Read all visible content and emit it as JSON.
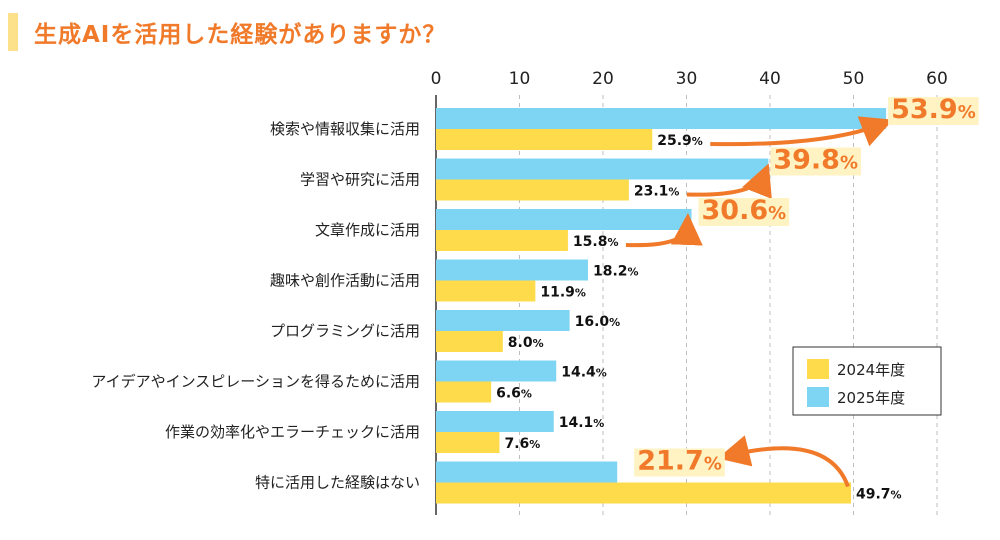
{
  "title": "生成AIを活用した経験がありますか？",
  "colors": {
    "y2024": "#fedb4b",
    "y2025": "#7dd5f3",
    "accent": "#f07a2a",
    "highlight": "#fff3c4"
  },
  "chart_data": {
    "type": "bar",
    "orientation": "horizontal",
    "xlim": [
      0,
      60
    ],
    "ticks": [
      "0",
      "10",
      "20",
      "30",
      "40",
      "50",
      "60"
    ],
    "categories": [
      "検索や情報収集に活用",
      "学習や研究に活用",
      "文章作成に活用",
      "趣味や創作活動に活用",
      "プログラミングに活用",
      "アイデアやインスピレーションを得るために活用",
      "作業の効率化やエラーチェックに活用",
      "特に活用した経験はない"
    ],
    "series": [
      {
        "name": "2025年度",
        "values": [
          53.9,
          39.8,
          30.6,
          18.2,
          16.0,
          14.4,
          14.1,
          21.7
        ]
      },
      {
        "name": "2024年度",
        "values": [
          25.9,
          23.1,
          15.8,
          11.9,
          8.0,
          6.6,
          7.6,
          49.7
        ]
      }
    ],
    "labels_2025": [
      "53.9",
      "39.8",
      "30.6",
      "18.2",
      "16.0",
      "14.4",
      "14.1",
      "21.7"
    ],
    "labels_2024": [
      "25.9",
      "23.1",
      "15.8",
      "11.9",
      "8.0",
      "6.6",
      "7.6",
      "49.7"
    ],
    "unit": "%",
    "highlighted": [
      0,
      1,
      2,
      7
    ],
    "legend": [
      "2024年度",
      "2025年度"
    ],
    "legend_position": "lower-right",
    "grid": true
  }
}
